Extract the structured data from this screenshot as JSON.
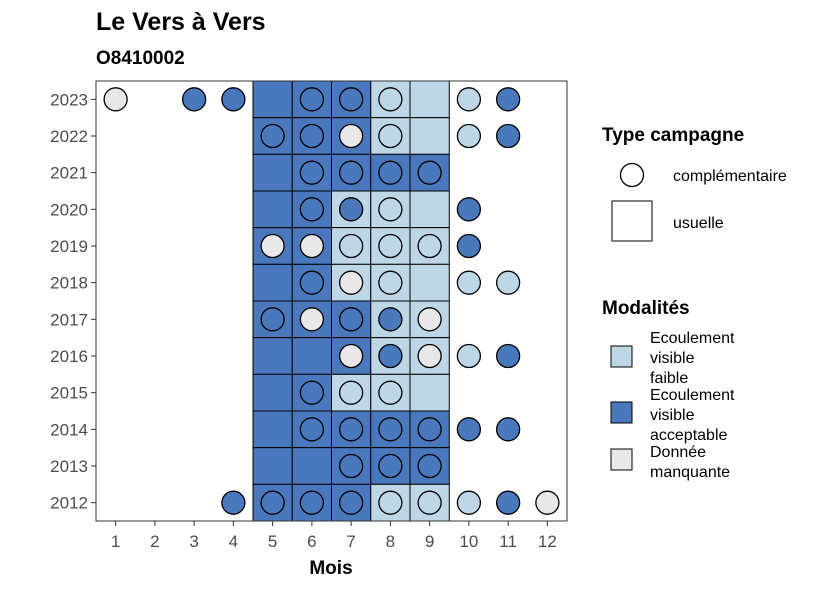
{
  "chart_data": {
    "type": "heatmap",
    "title": "Le Vers à Vers",
    "subtitle": "O8410002",
    "xlabel": "Mois",
    "ylabel": "",
    "x_ticks": [
      1,
      2,
      3,
      4,
      5,
      6,
      7,
      8,
      9,
      10,
      11,
      12
    ],
    "y_ticks": [
      2012,
      2013,
      2014,
      2015,
      2016,
      2017,
      2018,
      2019,
      2020,
      2021,
      2022,
      2023
    ],
    "grid": false,
    "legend_placement": "right",
    "legend": {
      "type_title": "Type campagne",
      "type_entries": [
        {
          "shape": "circle",
          "label": "complémentaire"
        },
        {
          "shape": "square",
          "label": "usuelle"
        }
      ],
      "mod_title": "Modalités",
      "mod_entries": [
        {
          "key": "faible",
          "lines": [
            "Ecoulement",
            "visible",
            "faible"
          ]
        },
        {
          "key": "acceptable",
          "lines": [
            "Ecoulement",
            "visible",
            "acceptable"
          ]
        },
        {
          "key": "manquante",
          "lines": [
            "Donnée",
            "manquante"
          ]
        }
      ]
    },
    "colors": {
      "faible": "#bdd7e7",
      "acceptable": "#4a78bd",
      "manquante": "#e8e8e8"
    },
    "usuelle": [
      [
        2023,
        5,
        "acceptable"
      ],
      [
        2023,
        6,
        "acceptable"
      ],
      [
        2023,
        7,
        "acceptable"
      ],
      [
        2023,
        8,
        "faible"
      ],
      [
        2023,
        9,
        "faible"
      ],
      [
        2022,
        5,
        "acceptable"
      ],
      [
        2022,
        6,
        "acceptable"
      ],
      [
        2022,
        7,
        "acceptable"
      ],
      [
        2022,
        8,
        "faible"
      ],
      [
        2022,
        9,
        "faible"
      ],
      [
        2021,
        5,
        "acceptable"
      ],
      [
        2021,
        6,
        "acceptable"
      ],
      [
        2021,
        7,
        "acceptable"
      ],
      [
        2021,
        8,
        "acceptable"
      ],
      [
        2021,
        9,
        "acceptable"
      ],
      [
        2020,
        5,
        "acceptable"
      ],
      [
        2020,
        6,
        "acceptable"
      ],
      [
        2020,
        7,
        "faible"
      ],
      [
        2020,
        8,
        "faible"
      ],
      [
        2020,
        9,
        "faible"
      ],
      [
        2019,
        5,
        "acceptable"
      ],
      [
        2019,
        6,
        "acceptable"
      ],
      [
        2019,
        7,
        "faible"
      ],
      [
        2019,
        8,
        "faible"
      ],
      [
        2019,
        9,
        "faible"
      ],
      [
        2018,
        5,
        "acceptable"
      ],
      [
        2018,
        6,
        "acceptable"
      ],
      [
        2018,
        7,
        "faible"
      ],
      [
        2018,
        8,
        "faible"
      ],
      [
        2018,
        9,
        "faible"
      ],
      [
        2017,
        5,
        "acceptable"
      ],
      [
        2017,
        6,
        "acceptable"
      ],
      [
        2017,
        7,
        "acceptable"
      ],
      [
        2017,
        8,
        "faible"
      ],
      [
        2017,
        9,
        "faible"
      ],
      [
        2016,
        5,
        "acceptable"
      ],
      [
        2016,
        6,
        "acceptable"
      ],
      [
        2016,
        7,
        "acceptable"
      ],
      [
        2016,
        8,
        "faible"
      ],
      [
        2016,
        9,
        "faible"
      ],
      [
        2015,
        5,
        "acceptable"
      ],
      [
        2015,
        6,
        "acceptable"
      ],
      [
        2015,
        7,
        "faible"
      ],
      [
        2015,
        8,
        "faible"
      ],
      [
        2015,
        9,
        "faible"
      ],
      [
        2014,
        5,
        "acceptable"
      ],
      [
        2014,
        6,
        "acceptable"
      ],
      [
        2014,
        7,
        "acceptable"
      ],
      [
        2014,
        8,
        "acceptable"
      ],
      [
        2014,
        9,
        "acceptable"
      ],
      [
        2013,
        5,
        "acceptable"
      ],
      [
        2013,
        6,
        "acceptable"
      ],
      [
        2013,
        7,
        "acceptable"
      ],
      [
        2013,
        8,
        "acceptable"
      ],
      [
        2013,
        9,
        "acceptable"
      ],
      [
        2012,
        5,
        "acceptable"
      ],
      [
        2012,
        6,
        "acceptable"
      ],
      [
        2012,
        7,
        "acceptable"
      ],
      [
        2012,
        8,
        "faible"
      ],
      [
        2012,
        9,
        "faible"
      ]
    ],
    "complementaire": [
      [
        2023,
        1,
        "manquante"
      ],
      [
        2023,
        3,
        "acceptable"
      ],
      [
        2023,
        4,
        "acceptable"
      ],
      [
        2023,
        6,
        "acceptable"
      ],
      [
        2023,
        7,
        "acceptable"
      ],
      [
        2023,
        8,
        "faible"
      ],
      [
        2023,
        10,
        "faible"
      ],
      [
        2023,
        11,
        "acceptable"
      ],
      [
        2022,
        5,
        "acceptable"
      ],
      [
        2022,
        6,
        "acceptable"
      ],
      [
        2022,
        7,
        "manquante"
      ],
      [
        2022,
        8,
        "faible"
      ],
      [
        2022,
        10,
        "faible"
      ],
      [
        2022,
        11,
        "acceptable"
      ],
      [
        2021,
        6,
        "acceptable"
      ],
      [
        2021,
        7,
        "acceptable"
      ],
      [
        2021,
        8,
        "acceptable"
      ],
      [
        2021,
        9,
        "acceptable"
      ],
      [
        2020,
        6,
        "acceptable"
      ],
      [
        2020,
        7,
        "acceptable"
      ],
      [
        2020,
        8,
        "faible"
      ],
      [
        2020,
        10,
        "acceptable"
      ],
      [
        2019,
        5,
        "manquante"
      ],
      [
        2019,
        6,
        "manquante"
      ],
      [
        2019,
        7,
        "faible"
      ],
      [
        2019,
        8,
        "faible"
      ],
      [
        2019,
        9,
        "faible"
      ],
      [
        2019,
        10,
        "acceptable"
      ],
      [
        2018,
        6,
        "acceptable"
      ],
      [
        2018,
        7,
        "manquante"
      ],
      [
        2018,
        8,
        "faible"
      ],
      [
        2018,
        10,
        "faible"
      ],
      [
        2018,
        11,
        "faible"
      ],
      [
        2017,
        5,
        "acceptable"
      ],
      [
        2017,
        6,
        "manquante"
      ],
      [
        2017,
        7,
        "acceptable"
      ],
      [
        2017,
        8,
        "acceptable"
      ],
      [
        2017,
        9,
        "manquante"
      ],
      [
        2016,
        7,
        "manquante"
      ],
      [
        2016,
        8,
        "acceptable"
      ],
      [
        2016,
        9,
        "manquante"
      ],
      [
        2016,
        10,
        "faible"
      ],
      [
        2016,
        11,
        "acceptable"
      ],
      [
        2015,
        6,
        "acceptable"
      ],
      [
        2015,
        7,
        "faible"
      ],
      [
        2015,
        8,
        "faible"
      ],
      [
        2014,
        6,
        "acceptable"
      ],
      [
        2014,
        7,
        "acceptable"
      ],
      [
        2014,
        8,
        "acceptable"
      ],
      [
        2014,
        9,
        "acceptable"
      ],
      [
        2014,
        10,
        "acceptable"
      ],
      [
        2014,
        11,
        "acceptable"
      ],
      [
        2013,
        7,
        "acceptable"
      ],
      [
        2013,
        8,
        "acceptable"
      ],
      [
        2013,
        9,
        "acceptable"
      ],
      [
        2012,
        4,
        "acceptable"
      ],
      [
        2012,
        5,
        "acceptable"
      ],
      [
        2012,
        6,
        "acceptable"
      ],
      [
        2012,
        7,
        "acceptable"
      ],
      [
        2012,
        8,
        "faible"
      ],
      [
        2012,
        9,
        "faible"
      ],
      [
        2012,
        10,
        "faible"
      ],
      [
        2012,
        11,
        "acceptable"
      ],
      [
        2012,
        12,
        "manquante"
      ]
    ]
  }
}
